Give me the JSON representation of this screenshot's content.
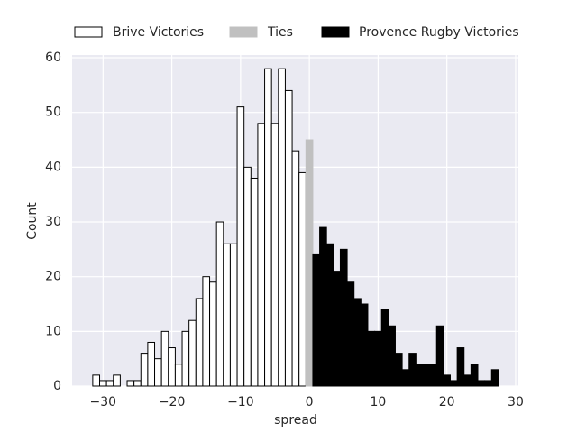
{
  "chart_data": {
    "type": "histogram",
    "xlabel": "spread",
    "ylabel": "Count",
    "xlim": [
      -34.5,
      30.4
    ],
    "ylim": [
      0,
      60.5
    ],
    "xticks": [
      {
        "value": -30,
        "label": "−30"
      },
      {
        "value": -20,
        "label": "−20"
      },
      {
        "value": -10,
        "label": "−10"
      },
      0,
      10,
      20,
      30
    ],
    "yticks": [
      0,
      10,
      20,
      30,
      40,
      50,
      60
    ],
    "grid": true,
    "legend": "top",
    "series": [
      {
        "name": "Brive Victories",
        "color": "#ffffff",
        "edgecolor": "#000000",
        "bins": [
          -31.5,
          -30.5,
          -29.5,
          -28.5,
          -27.5,
          -26.5,
          -25.5,
          -24.5,
          -23.5,
          -22.5,
          -21.5,
          -20.5,
          -19.5,
          -18.5,
          -17.5,
          -16.5,
          -15.5,
          -14.5,
          -13.5,
          -12.5,
          -11.5,
          -10.5,
          -9.5,
          -8.5,
          -7.5,
          -6.5,
          -5.5,
          -4.5,
          -3.5,
          -2.5,
          -1.5,
          -0.5
        ],
        "values": [
          2,
          1,
          1,
          2,
          0,
          1,
          1,
          6,
          8,
          5,
          10,
          7,
          4,
          10,
          12,
          16,
          20,
          19,
          30,
          26,
          26,
          51,
          40,
          38,
          48,
          58,
          48,
          58,
          54,
          43,
          39
        ]
      },
      {
        "name": "Ties",
        "color": "#c0c0c0",
        "edgecolor": "#c0c0c0",
        "bins": [
          -0.5,
          0.5
        ],
        "values": [
          45
        ]
      },
      {
        "name": "Provence Rugby Victories",
        "color": "#000000",
        "edgecolor": "#000000",
        "bins": [
          0.5,
          1.5,
          2.5,
          3.5,
          4.5,
          5.5,
          6.5,
          7.5,
          8.5,
          9.5,
          10.5,
          11.5,
          12.5,
          13.5,
          14.5,
          15.5,
          16.5,
          17.5,
          18.5,
          19.5,
          20.5,
          21.5,
          22.5,
          23.5,
          24.5,
          25.5,
          26.5,
          27.5
        ],
        "values": [
          24,
          29,
          26,
          21,
          25,
          19,
          16,
          15,
          10,
          10,
          14,
          11,
          6,
          3,
          6,
          4,
          4,
          4,
          11,
          2,
          1,
          7,
          2,
          4,
          1,
          1,
          3
        ]
      }
    ]
  }
}
